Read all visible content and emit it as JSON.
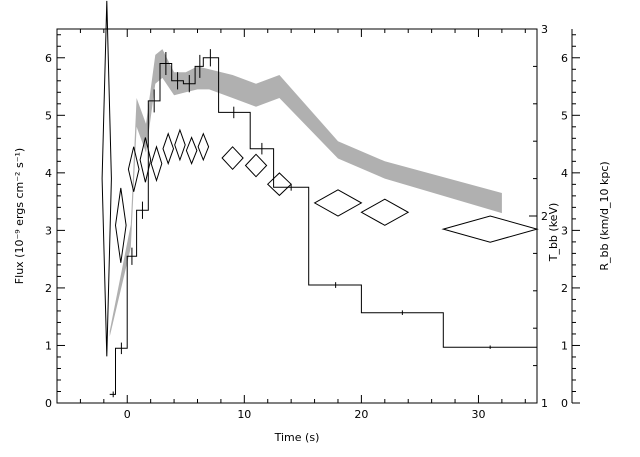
{
  "chart_data": {
    "type": "line",
    "title": "",
    "xlabel": "Time (s)",
    "ylabel_left": "Flux (10⁻⁹ ergs cm⁻² s⁻¹)",
    "ylabel_right_inner": "T_bb (keV)",
    "ylabel_right_outer": "R_bb (km/d_10 kpc)",
    "xlim": [
      -6,
      35
    ],
    "ylim_left": [
      0,
      6.5
    ],
    "ylim_right_inner": [
      1,
      3
    ],
    "ylim_right_outer": [
      0,
      6.5
    ],
    "x_ticks": [
      0,
      10,
      20,
      30
    ],
    "x_tick_labels": [
      "0",
      "10",
      "20",
      "30"
    ],
    "y_left_ticks": [
      0,
      1,
      2,
      3,
      4,
      5,
      6
    ],
    "y_left_tick_labels": [
      "0",
      "1",
      "2",
      "3",
      "4",
      "5",
      "6"
    ],
    "y_right_inner_ticks": [
      1,
      2,
      3
    ],
    "y_right_inner_tick_labels": [
      "1",
      "2",
      "3"
    ],
    "y_right_outer_ticks": [
      0,
      1,
      2,
      3,
      4,
      5,
      6
    ],
    "y_right_outer_tick_labels": [
      "0",
      "1",
      "2",
      "3",
      "4",
      "5",
      "6"
    ],
    "grid": false,
    "series": [
      {
        "kind": "step",
        "description_unit": "flux",
        "color": "#000000",
        "bins": [
          [
            -1.5,
            -1.0,
            0.15
          ],
          [
            -1.0,
            0.0,
            0.95
          ],
          [
            0.0,
            0.8,
            2.55
          ],
          [
            0.8,
            1.8,
            3.35
          ],
          [
            1.8,
            2.8,
            5.25
          ],
          [
            2.8,
            3.8,
            5.9
          ],
          [
            3.8,
            4.8,
            5.6
          ],
          [
            4.8,
            5.8,
            5.55
          ],
          [
            5.8,
            6.5,
            5.85
          ],
          [
            6.5,
            7.8,
            6.0
          ],
          [
            7.8,
            10.5,
            5.05
          ],
          [
            10.5,
            12.5,
            4.42
          ],
          [
            12.5,
            15.5,
            3.75
          ],
          [
            15.5,
            20.0,
            2.05
          ],
          [
            20.0,
            27.0,
            1.57
          ],
          [
            27.0,
            35.0,
            0.97
          ]
        ],
        "points": [
          {
            "x": -1.2,
            "y": 0.15,
            "yerr": 0.05
          },
          {
            "x": -0.5,
            "y": 0.95,
            "yerr": 0.1
          },
          {
            "x": 0.4,
            "y": 2.55,
            "yerr": 0.15
          },
          {
            "x": 1.3,
            "y": 3.35,
            "yerr": 0.15
          },
          {
            "x": 2.3,
            "y": 5.25,
            "yerr": 0.2
          },
          {
            "x": 3.3,
            "y": 5.9,
            "yerr": 0.2
          },
          {
            "x": 4.3,
            "y": 5.6,
            "yerr": 0.15
          },
          {
            "x": 5.3,
            "y": 5.55,
            "yerr": 0.15
          },
          {
            "x": 6.2,
            "y": 5.85,
            "yerr": 0.2
          },
          {
            "x": 7.1,
            "y": 6.0,
            "yerr": 0.15
          },
          {
            "x": 9.1,
            "y": 5.05,
            "yerr": 0.1
          },
          {
            "x": 11.5,
            "y": 4.42,
            "yerr": 0.1
          },
          {
            "x": 14.0,
            "y": 3.75,
            "yerr": 0.06
          },
          {
            "x": 17.8,
            "y": 2.05,
            "yerr": 0.05
          },
          {
            "x": 23.5,
            "y": 1.57,
            "yerr": 0.04
          },
          {
            "x": 31.0,
            "y": 0.97,
            "yerr": 0.03
          }
        ]
      },
      {
        "kind": "band",
        "description_unit": "radius",
        "color": "#b0b0b0",
        "x": [
          -1.5,
          0.3,
          0.8,
          1.6,
          2.4,
          3.0,
          4.0,
          5.0,
          6.0,
          7.0,
          9.0,
          11.0,
          13.0,
          18.0,
          22.0,
          32.0
        ],
        "lower": [
          1.15,
          2.7,
          4.8,
          4.35,
          5.55,
          5.65,
          5.35,
          5.4,
          5.45,
          5.45,
          5.3,
          5.15,
          5.3,
          4.25,
          3.9,
          3.3
        ],
        "upper": [
          1.25,
          3.1,
          5.3,
          4.85,
          6.05,
          6.15,
          5.75,
          5.75,
          5.85,
          5.8,
          5.7,
          5.55,
          5.7,
          4.55,
          4.2,
          3.65
        ]
      },
      {
        "kind": "diamonds",
        "description_unit": "temperature_keV",
        "color": "#000000",
        "points": [
          {
            "x": -1.75,
            "y": 2.2,
            "dx": 0.4,
            "dy": 0.95
          },
          {
            "x": -0.55,
            "y": 1.95,
            "dx": 0.45,
            "dy": 0.2
          },
          {
            "x": 0.55,
            "y": 2.25,
            "dx": 0.45,
            "dy": 0.12
          },
          {
            "x": 1.55,
            "y": 2.3,
            "dx": 0.45,
            "dy": 0.12
          },
          {
            "x": 2.5,
            "y": 2.28,
            "dx": 0.45,
            "dy": 0.09
          },
          {
            "x": 3.5,
            "y": 2.36,
            "dx": 0.45,
            "dy": 0.08
          },
          {
            "x": 4.5,
            "y": 2.38,
            "dx": 0.45,
            "dy": 0.08
          },
          {
            "x": 5.5,
            "y": 2.35,
            "dx": 0.45,
            "dy": 0.07
          },
          {
            "x": 6.5,
            "y": 2.37,
            "dx": 0.45,
            "dy": 0.07
          },
          {
            "x": 9.0,
            "y": 2.31,
            "dx": 0.9,
            "dy": 0.06
          },
          {
            "x": 11.0,
            "y": 2.27,
            "dx": 0.9,
            "dy": 0.06
          },
          {
            "x": 13.0,
            "y": 2.17,
            "dx": 1.0,
            "dy": 0.06
          },
          {
            "x": 18.0,
            "y": 2.07,
            "dx": 2.0,
            "dy": 0.07
          },
          {
            "x": 22.0,
            "y": 2.02,
            "dx": 2.0,
            "dy": 0.07
          },
          {
            "x": 31.0,
            "y": 1.93,
            "dx": 4.0,
            "dy": 0.07
          }
        ]
      }
    ]
  }
}
